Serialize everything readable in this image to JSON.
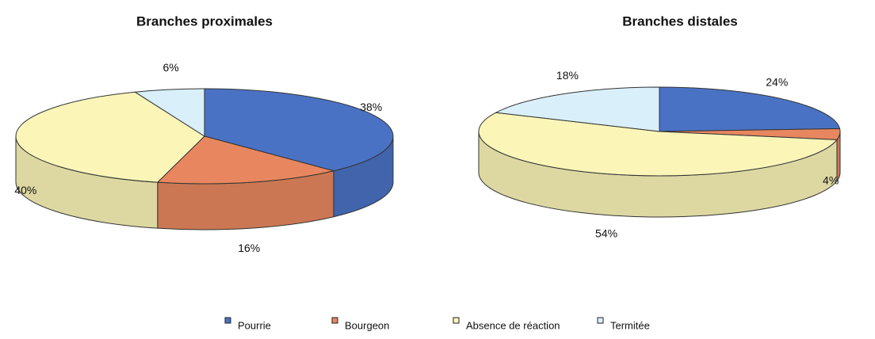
{
  "chart_data": [
    {
      "type": "pie",
      "title": "Branches proximales",
      "values": [
        38,
        16,
        40,
        6
      ],
      "value_labels": [
        "38%",
        "16%",
        "40%",
        "6%"
      ]
    },
    {
      "type": "pie",
      "title": "Branches distales",
      "values": [
        24,
        4,
        54,
        18
      ],
      "value_labels": [
        "24%",
        "4%",
        "54%",
        "18%"
      ]
    }
  ],
  "legend": {
    "categories": [
      "Pourrie",
      "Bourgeon",
      "Absence de réaction",
      "Termitée"
    ],
    "colors": [
      "#4a72c4",
      "#e8875f",
      "#fbf6b8",
      "#d9effa"
    ]
  }
}
